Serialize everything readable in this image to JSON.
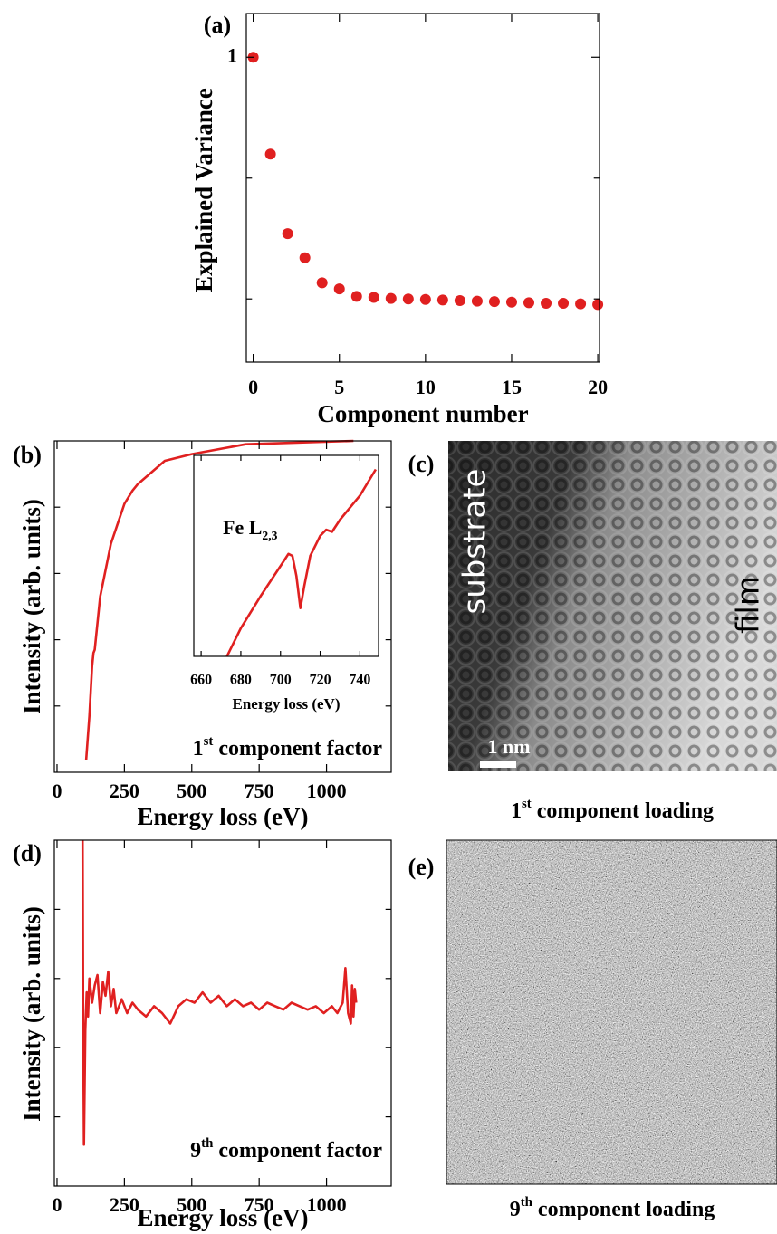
{
  "chart_data": [
    {
      "type": "scatter",
      "panel_label": "(a)",
      "xlabel": "Component number",
      "ylabel": "Explained Variance",
      "log_y": true,
      "color": "#e02020",
      "x": [
        0,
        1,
        2,
        3,
        4,
        5,
        6,
        7,
        8,
        9,
        10,
        11,
        12,
        13,
        14,
        15,
        16,
        17,
        18,
        19,
        20
      ],
      "values": [
        1,
        0.158,
        0.0347,
        0.0219,
        0.0136,
        0.0121,
        0.0105,
        0.0103,
        0.0101,
        0.01,
        0.0099,
        0.0098,
        0.0097,
        0.0096,
        0.0095,
        0.0094,
        0.0093,
        0.0092,
        0.0092,
        0.0091,
        0.009
      ],
      "xlim": [
        -0.4,
        20.1
      ],
      "xticks": [
        0,
        5,
        10,
        15,
        20
      ],
      "ylim": [
        0.003,
        2.3
      ],
      "yticks": [
        1
      ],
      "minor_yticks": [
        0.1,
        0.01
      ]
    },
    {
      "type": "line",
      "panel_label": "(b)",
      "xlabel": "Energy loss (eV)",
      "ylabel": "Intensity (arb. units)",
      "annotation": {
        "base": "1",
        "sup": "st",
        "rest": " component factor"
      },
      "color": "#e02020",
      "x": [
        108,
        120,
        130,
        135,
        140,
        160,
        200,
        250,
        280,
        300,
        400,
        500,
        700,
        900,
        1100
      ],
      "values": [
        0.036,
        0.17,
        0.32,
        0.36,
        0.37,
        0.53,
        0.69,
        0.81,
        0.85,
        0.87,
        0.94,
        0.96,
        0.99,
        0.995,
        1.0
      ],
      "xlim": [
        -10,
        1240
      ],
      "xticks": [
        0,
        250,
        500,
        750,
        1000
      ],
      "ylim": [
        0,
        1
      ],
      "minor_yticks": [
        0.2,
        0.4,
        0.6,
        0.8
      ]
    },
    {
      "type": "line",
      "inset": true,
      "xlabel": "Energy loss (eV)",
      "annotation": {
        "base": "Fe L",
        "sub": "2,3"
      },
      "color": "#e02020",
      "x": [
        673,
        680,
        690,
        700,
        704,
        706,
        708,
        710,
        712,
        715,
        720,
        723,
        726,
        730,
        740,
        748
      ],
      "values": [
        0,
        0.14,
        0.3,
        0.45,
        0.51,
        0.5,
        0.4,
        0.24,
        0.35,
        0.5,
        0.6,
        0.63,
        0.62,
        0.68,
        0.8,
        0.93
      ],
      "xlim": [
        656.3,
        749.4
      ],
      "xticks": [
        660,
        680,
        700,
        720,
        740
      ],
      "ylim": [
        0,
        1
      ]
    },
    {
      "type": "line",
      "panel_label": "(d)",
      "xlabel": "Energy loss (eV)",
      "ylabel": "Intensity (arb. units)",
      "annotation": {
        "base": "9",
        "sup": "th",
        "rest": " component factor"
      },
      "color": "#e02020",
      "x": [
        95,
        97,
        100,
        105,
        110,
        115,
        120,
        130,
        140,
        150,
        160,
        170,
        180,
        190,
        200,
        210,
        220,
        240,
        260,
        280,
        300,
        330,
        360,
        390,
        420,
        450,
        480,
        510,
        540,
        570,
        600,
        630,
        660,
        690,
        720,
        750,
        780,
        810,
        840,
        870,
        900,
        930,
        960,
        990,
        1020,
        1040,
        1060,
        1070,
        1080,
        1090,
        1095,
        1100,
        1105,
        1110
      ],
      "values": [
        1.0,
        0.5,
        0.12,
        0.45,
        0.56,
        0.49,
        0.6,
        0.53,
        0.58,
        0.61,
        0.5,
        0.59,
        0.55,
        0.62,
        0.52,
        0.57,
        0.5,
        0.54,
        0.5,
        0.53,
        0.51,
        0.49,
        0.52,
        0.5,
        0.47,
        0.52,
        0.54,
        0.53,
        0.56,
        0.53,
        0.55,
        0.52,
        0.54,
        0.52,
        0.53,
        0.51,
        0.53,
        0.52,
        0.51,
        0.53,
        0.52,
        0.51,
        0.52,
        0.5,
        0.52,
        0.5,
        0.53,
        0.63,
        0.5,
        0.47,
        0.58,
        0.49,
        0.57,
        0.53
      ],
      "xlim": [
        -10,
        1240
      ],
      "xticks": [
        0,
        250,
        500,
        750,
        1000
      ],
      "ylim": [
        0,
        1
      ],
      "minor_yticks": [
        0.2,
        0.4,
        0.6,
        0.8
      ]
    }
  ],
  "images": [
    {
      "panel_label": "(c)",
      "caption": {
        "base": "1",
        "sup": "st",
        "rest": " component loading"
      },
      "left_label": "substrate",
      "right_label": "film",
      "scale_bar": "1 nm"
    },
    {
      "panel_label": "(e)",
      "caption": {
        "base": "9",
        "sup": "th",
        "rest": " component loading"
      }
    }
  ]
}
